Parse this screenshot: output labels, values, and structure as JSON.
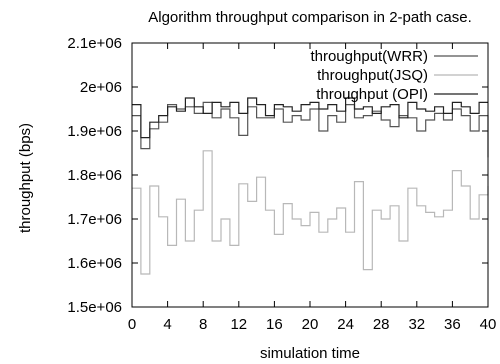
{
  "chart_data": {
    "type": "line",
    "title": "Algorithm throughput comparison in 2-path case.",
    "xlabel": "simulation time",
    "ylabel": "throughput (bps)",
    "xlim": [
      0,
      40
    ],
    "ylim": [
      1500000,
      2100000
    ],
    "x_ticks": [
      0,
      4,
      8,
      12,
      16,
      20,
      24,
      28,
      32,
      36,
      40
    ],
    "x_tick_labels": [
      "0",
      "4",
      "8",
      "12",
      "16",
      "20",
      "24",
      "28",
      "32",
      "36",
      "40"
    ],
    "y_ticks": [
      1500000,
      1600000,
      1700000,
      1800000,
      1900000,
      2000000,
      2100000
    ],
    "y_tick_labels": [
      "1.5e+06",
      "1.6e+06",
      "1.7e+06",
      "1.8e+06",
      "1.9e+06",
      "2e+06",
      "2.1e+06"
    ],
    "step": "steps",
    "legend_position": "top-right",
    "grid": false,
    "x": [
      0,
      1,
      2,
      3,
      4,
      5,
      6,
      7,
      8,
      9,
      10,
      11,
      12,
      13,
      14,
      15,
      16,
      17,
      18,
      19,
      20,
      21,
      22,
      23,
      24,
      25,
      26,
      27,
      28,
      29,
      30,
      31,
      32,
      33,
      34,
      35,
      36,
      37,
      38,
      39,
      40
    ],
    "series": [
      {
        "name": "throughput(WRR)",
        "color": "#555555",
        "values": [
          1935000,
          1860000,
          1905000,
          1920000,
          1960000,
          1950000,
          1955000,
          1940000,
          1965000,
          1930000,
          1950000,
          1930000,
          1890000,
          1955000,
          1930000,
          1930000,
          1950000,
          1920000,
          1935000,
          1925000,
          1950000,
          1900000,
          1935000,
          1920000,
          1960000,
          1930000,
          1935000,
          1945000,
          1925000,
          1910000,
          1935000,
          1930000,
          1900000,
          1925000,
          1940000,
          1925000,
          1950000,
          1935000,
          1900000,
          1935000,
          1840000
        ]
      },
      {
        "name": "throughput(JSQ)",
        "color": "#b8b8b8",
        "values": [
          1770000,
          1575000,
          1775000,
          1705000,
          1640000,
          1745000,
          1650000,
          1720000,
          1855000,
          1650000,
          1700000,
          1640000,
          1780000,
          1740000,
          1795000,
          1720000,
          1665000,
          1735000,
          1700000,
          1685000,
          1715000,
          1670000,
          1700000,
          1725000,
          1670000,
          1785000,
          1585000,
          1720000,
          1700000,
          1730000,
          1650000,
          1770000,
          1730000,
          1715000,
          1705000,
          1720000,
          1810000,
          1775000,
          1700000,
          1755000,
          1775000
        ]
      },
      {
        "name": "throughput (OPI)",
        "color": "#222222",
        "values": [
          1960000,
          1885000,
          1920000,
          1935000,
          1955000,
          1945000,
          1975000,
          1955000,
          1940000,
          1965000,
          1955000,
          1965000,
          1940000,
          1975000,
          1960000,
          1935000,
          1960000,
          1955000,
          1945000,
          1960000,
          1965000,
          1950000,
          1960000,
          1945000,
          1975000,
          1950000,
          1955000,
          1940000,
          1955000,
          1960000,
          1930000,
          1965000,
          1950000,
          1945000,
          1955000,
          1940000,
          1965000,
          1955000,
          1940000,
          1965000,
          1965000
        ]
      }
    ]
  }
}
